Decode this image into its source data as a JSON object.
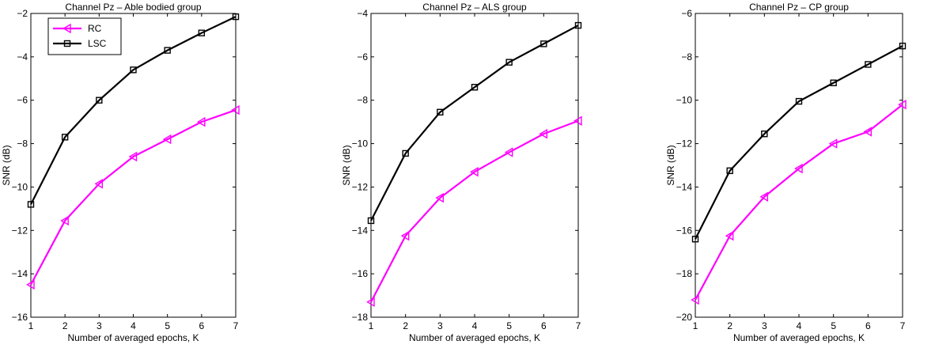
{
  "chart_data": [
    {
      "type": "line",
      "title": "Channel Pz – Able bodied group",
      "xlabel": "Number of averaged epochs, K",
      "ylabel": "SNR (dB)",
      "xlim": [
        1,
        7
      ],
      "ylim": [
        -16,
        -2
      ],
      "xticks": [
        1,
        2,
        3,
        4,
        5,
        6,
        7
      ],
      "yticks": [
        -16,
        -14,
        -12,
        -10,
        -8,
        -6,
        -4,
        -2
      ],
      "x": [
        1,
        2,
        3,
        4,
        5,
        6,
        7
      ],
      "grid": false,
      "legend": "top-left",
      "series": [
        {
          "name": "RC",
          "color": "#ff00ff",
          "marker": "triangle-left",
          "values": [
            -14.5,
            -11.55,
            -9.85,
            -8.6,
            -7.8,
            -7.0,
            -6.45
          ]
        },
        {
          "name": "LSC",
          "color": "#000000",
          "marker": "square",
          "values": [
            -10.8,
            -7.7,
            -6.0,
            -4.6,
            -3.7,
            -2.9,
            -2.15
          ]
        }
      ]
    },
    {
      "type": "line",
      "title": "Channel Pz – ALS group",
      "xlabel": "Number of averaged epochs, K",
      "ylabel": "SNR (dB)",
      "xlim": [
        1,
        7
      ],
      "ylim": [
        -18,
        -4
      ],
      "xticks": [
        1,
        2,
        3,
        4,
        5,
        6,
        7
      ],
      "yticks": [
        -18,
        -16,
        -14,
        -12,
        -10,
        -8,
        -6,
        -4
      ],
      "x": [
        1,
        2,
        3,
        4,
        5,
        6,
        7
      ],
      "grid": false,
      "series": [
        {
          "name": "RC",
          "color": "#ff00ff",
          "marker": "triangle-left",
          "values": [
            -17.3,
            -14.25,
            -12.5,
            -11.3,
            -10.4,
            -9.55,
            -8.95
          ]
        },
        {
          "name": "LSC",
          "color": "#000000",
          "marker": "square",
          "values": [
            -13.55,
            -10.45,
            -8.55,
            -7.4,
            -6.25,
            -5.4,
            -4.55
          ]
        }
      ]
    },
    {
      "type": "line",
      "title": "Channel Pz – CP group",
      "xlabel": "Number of averaged epochs, K",
      "ylabel": "SNR (dB)",
      "xlim": [
        1,
        7
      ],
      "ylim": [
        -20,
        -6
      ],
      "xticks": [
        1,
        2,
        3,
        4,
        5,
        6,
        7
      ],
      "yticks": [
        -20,
        -18,
        -16,
        -14,
        -12,
        -10,
        -8,
        -6
      ],
      "x": [
        1,
        2,
        3,
        4,
        5,
        6,
        7
      ],
      "grid": false,
      "series": [
        {
          "name": "RC",
          "color": "#ff00ff",
          "marker": "triangle-left",
          "values": [
            -19.2,
            -16.25,
            -14.45,
            -13.15,
            -12.0,
            -11.45,
            -10.2
          ]
        },
        {
          "name": "LSC",
          "color": "#000000",
          "marker": "square",
          "values": [
            -16.4,
            -13.25,
            -11.55,
            -10.05,
            -9.2,
            -8.35,
            -7.5
          ]
        }
      ]
    }
  ]
}
